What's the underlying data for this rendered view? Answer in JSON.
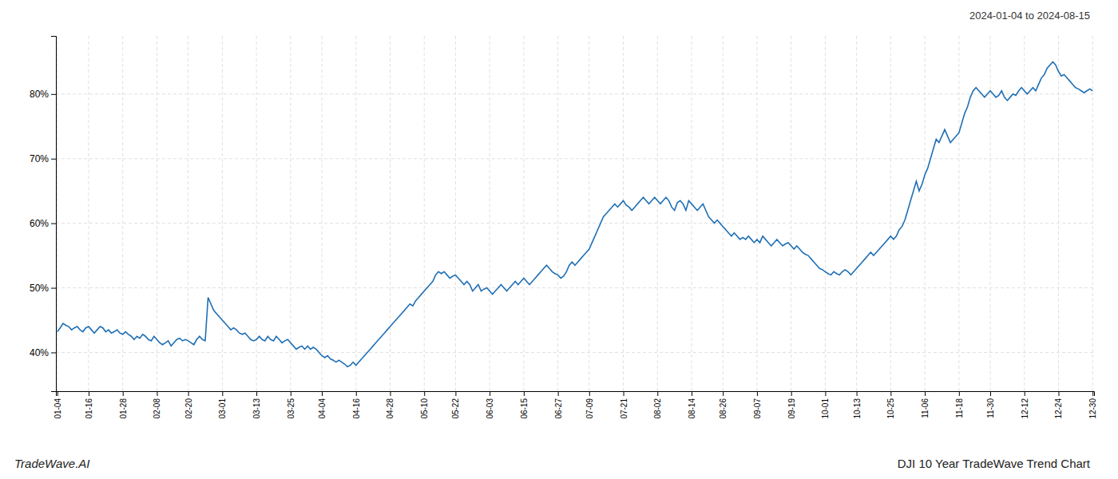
{
  "chart_data": {
    "type": "line",
    "title": "DJI 10 Year TradeWave Trend Chart",
    "subtitle": "2024-01-04 to 2024-08-15",
    "annotations": [
      "TradeWave.AI"
    ],
    "categories": [
      "01-04",
      null,
      null,
      null,
      null,
      null,
      null,
      null,
      null,
      null,
      null,
      "01-16",
      null,
      null,
      null,
      null,
      null,
      null,
      null,
      null,
      null,
      null,
      null,
      "01-28",
      null,
      null,
      null,
      null,
      null,
      null,
      null,
      null,
      null,
      null,
      null,
      "02-08",
      null,
      null,
      null,
      null,
      null,
      null,
      null,
      null,
      null,
      null,
      "02-20",
      null,
      null,
      null,
      null,
      null,
      null,
      null,
      null,
      null,
      null,
      null,
      "03-01",
      null,
      null,
      null,
      null,
      null,
      null,
      null,
      null,
      null,
      null,
      null,
      "03-13",
      null,
      null,
      null,
      null,
      null,
      null,
      null,
      null,
      null,
      null,
      null,
      "03-25",
      null,
      null,
      null,
      null,
      null,
      null,
      null,
      null,
      null,
      null,
      "04-04",
      null,
      null,
      null,
      null,
      null,
      null,
      null,
      null,
      null,
      null,
      null,
      "04-16",
      null,
      null,
      null,
      null,
      null,
      null,
      null,
      null,
      null,
      null,
      null,
      "04-28",
      null,
      null,
      null,
      null,
      null,
      null,
      null,
      null,
      null,
      null,
      null,
      "05-10",
      null,
      null,
      null,
      null,
      null,
      null,
      null,
      null,
      null,
      null,
      "05-22",
      null,
      null,
      null,
      null,
      null,
      null,
      null,
      null,
      null,
      null,
      null,
      "06-03",
      null,
      null,
      null,
      null,
      null,
      null,
      null,
      null,
      null,
      null,
      null,
      "06-15",
      null,
      null,
      null,
      null,
      null,
      null,
      null,
      null,
      null,
      null,
      null,
      "06-27",
      null,
      null,
      null,
      null,
      null,
      null,
      null,
      null,
      null,
      null,
      "07-09",
      null,
      null,
      null,
      null,
      null,
      null,
      null,
      null,
      null,
      null,
      null,
      "07-21",
      null,
      null,
      null,
      null,
      null,
      null,
      null,
      null,
      null,
      null,
      null,
      "08-02",
      null,
      null,
      null,
      null,
      null,
      null,
      null,
      null,
      null,
      null,
      null,
      "08-14",
      null,
      null,
      null,
      null,
      null,
      null,
      null,
      null,
      null,
      null,
      "08-26",
      null,
      null,
      null,
      null,
      null,
      null,
      null,
      null,
      null,
      null,
      null,
      "09-07",
      null,
      null,
      null,
      null,
      null,
      null,
      null,
      null,
      null,
      null,
      null,
      "09-19",
      null,
      null,
      null,
      null,
      null,
      null,
      null,
      null,
      null,
      null,
      null,
      "10-01",
      null,
      null,
      null,
      null,
      null,
      null,
      null,
      null,
      null,
      null,
      "10-13",
      null,
      null,
      null,
      null,
      null,
      null,
      null,
      null,
      null,
      null,
      null,
      "10-25",
      null,
      null,
      null,
      null,
      null,
      null,
      null,
      null,
      null,
      null,
      null,
      "11-06",
      null,
      null,
      null,
      null,
      null,
      null,
      null,
      null,
      null,
      null,
      null,
      "11-18",
      null,
      null,
      null,
      null,
      null,
      null,
      null,
      null,
      null,
      null,
      "11-30",
      null,
      null,
      null,
      null,
      null,
      null,
      null,
      null,
      null,
      null,
      null,
      "12-12",
      null,
      null,
      null,
      null,
      null,
      null,
      null,
      null,
      null,
      null,
      null,
      "12-24",
      null,
      null,
      null,
      null,
      null,
      null,
      null,
      null,
      null,
      null,
      null,
      "12-30"
    ],
    "values": [
      43.2,
      43.8,
      44.5,
      44.2,
      44.0,
      43.5,
      43.8,
      44.0,
      43.5,
      43.2,
      43.8,
      44.0,
      43.5,
      43.0,
      43.5,
      44.0,
      43.8,
      43.2,
      43.5,
      43.0,
      43.2,
      43.5,
      43.0,
      42.8,
      43.2,
      42.8,
      42.5,
      42.0,
      42.5,
      42.2,
      42.8,
      42.5,
      42.0,
      41.8,
      42.5,
      42.0,
      41.5,
      41.2,
      41.5,
      41.8,
      41.0,
      41.5,
      42.0,
      42.2,
      41.8,
      42.0,
      41.8,
      41.5,
      41.2,
      42.0,
      42.5,
      42.0,
      41.8,
      48.5,
      47.5,
      46.5,
      46.0,
      45.5,
      45.0,
      44.5,
      44.0,
      43.5,
      43.8,
      43.5,
      43.0,
      42.8,
      43.0,
      42.5,
      42.0,
      41.8,
      42.0,
      42.5,
      42.0,
      41.8,
      42.5,
      42.0,
      41.8,
      42.5,
      42.0,
      41.5,
      41.8,
      42.0,
      41.5,
      41.0,
      40.5,
      40.8,
      41.0,
      40.5,
      41.0,
      40.5,
      40.8,
      40.5,
      40.0,
      39.5,
      39.2,
      39.5,
      39.0,
      38.8,
      38.5,
      38.8,
      38.5,
      38.2,
      37.8,
      38.0,
      38.5,
      38.0,
      38.5,
      39.0,
      39.5,
      40.0,
      40.5,
      41.0,
      41.5,
      42.0,
      42.5,
      43.0,
      43.5,
      44.0,
      44.5,
      45.0,
      45.5,
      46.0,
      46.5,
      47.0,
      47.5,
      47.2,
      48.0,
      48.5,
      49.0,
      49.5,
      50.0,
      50.5,
      51.0,
      52.0,
      52.5,
      52.2,
      52.5,
      52.0,
      51.5,
      51.8,
      52.0,
      51.5,
      51.0,
      50.5,
      51.0,
      50.5,
      49.5,
      50.0,
      50.5,
      49.5,
      49.8,
      50.0,
      49.5,
      49.0,
      49.5,
      50.0,
      50.5,
      50.0,
      49.5,
      50.0,
      50.5,
      51.0,
      50.5,
      51.0,
      51.5,
      51.0,
      50.5,
      51.0,
      51.5,
      52.0,
      52.5,
      53.0,
      53.5,
      53.0,
      52.5,
      52.2,
      52.0,
      51.5,
      51.8,
      52.5,
      53.5,
      54.0,
      53.5,
      54.0,
      54.5,
      55.0,
      55.5,
      56.0,
      57.0,
      58.0,
      59.0,
      60.0,
      61.0,
      61.5,
      62.0,
      62.5,
      63.0,
      62.5,
      63.0,
      63.5,
      62.8,
      62.5,
      62.0,
      62.5,
      63.0,
      63.5,
      64.0,
      63.5,
      63.0,
      63.5,
      64.0,
      63.5,
      63.0,
      63.5,
      64.0,
      63.5,
      62.5,
      62.0,
      63.2,
      63.5,
      63.0,
      62.0,
      63.5,
      63.0,
      62.5,
      62.0,
      62.5,
      63.0,
      62.0,
      61.0,
      60.5,
      60.0,
      60.5,
      60.0,
      59.5,
      59.0,
      58.5,
      58.0,
      58.5,
      58.0,
      57.5,
      57.8,
      57.5,
      58.0,
      57.5,
      57.0,
      57.5,
      57.0,
      58.0,
      57.5,
      57.0,
      56.5,
      57.0,
      57.5,
      57.0,
      56.5,
      56.8,
      57.0,
      56.5,
      56.0,
      56.5,
      56.0,
      55.5,
      55.2,
      55.0,
      54.5,
      54.0,
      53.5,
      53.0,
      52.8,
      52.5,
      52.2,
      52.0,
      52.5,
      52.2,
      52.0,
      52.5,
      52.8,
      52.5,
      52.0,
      52.5,
      53.0,
      53.5,
      54.0,
      54.5,
      55.0,
      55.5,
      55.0,
      55.5,
      56.0,
      56.5,
      57.0,
      57.5,
      58.0,
      57.5,
      58.0,
      59.0,
      59.5,
      60.5,
      62.0,
      63.5,
      65.0,
      66.5,
      65.0,
      66.0,
      67.5,
      68.5,
      70.0,
      71.5,
      73.0,
      72.5,
      73.5,
      74.5,
      73.5,
      72.5,
      73.0,
      73.5,
      74.0,
      75.5,
      77.0,
      78.0,
      79.5,
      80.5,
      81.0,
      80.5,
      80.0,
      79.5,
      80.0,
      80.5,
      80.0,
      79.5,
      79.8,
      80.5,
      79.5,
      79.0,
      79.5,
      80.0,
      79.8,
      80.5,
      81.0,
      80.5,
      80.0,
      80.5,
      81.0,
      80.5,
      81.5,
      82.5,
      83.0,
      84.0,
      84.5,
      85.0,
      84.5,
      83.5,
      82.8,
      83.0,
      82.5,
      82.0,
      81.5,
      81.0,
      80.8,
      80.5,
      80.2,
      80.5,
      80.8,
      80.5
    ],
    "color": "#1f6fb5",
    "ylim": [
      34,
      89
    ],
    "yticks": [
      {
        "value": 40,
        "label": "40%"
      },
      {
        "value": 50,
        "label": "50%"
      },
      {
        "value": 60,
        "label": "60%"
      },
      {
        "value": 70,
        "label": "70%"
      },
      {
        "value": 80,
        "label": "80%"
      }
    ],
    "grid": true
  }
}
